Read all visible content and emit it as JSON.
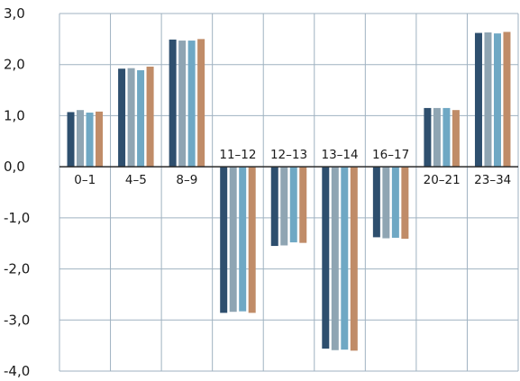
{
  "chart_data": {
    "type": "bar",
    "categories": [
      "0–1",
      "4–5",
      "8–9",
      "11–12",
      "12–13",
      "13–14",
      "16–17",
      "20–21",
      "23–34"
    ],
    "series": [
      {
        "color": "#2e4f6e",
        "values": [
          1.07,
          1.92,
          2.49,
          -2.86,
          -1.55,
          -3.56,
          -1.38,
          1.15,
          2.62
        ]
      },
      {
        "color": "#8fa5b3",
        "values": [
          1.11,
          1.93,
          2.47,
          -2.84,
          -1.54,
          -3.59,
          -1.4,
          1.15,
          2.63
        ]
      },
      {
        "color": "#6fa8c4",
        "values": [
          1.06,
          1.89,
          2.47,
          -2.83,
          -1.48,
          -3.58,
          -1.39,
          1.15,
          2.61
        ]
      },
      {
        "color": "#c08c68",
        "values": [
          1.08,
          1.96,
          2.5,
          -2.86,
          -1.49,
          -3.6,
          -1.41,
          1.11,
          2.64
        ]
      }
    ],
    "yticks": [
      "3,0",
      "2,0",
      "1,0",
      "0,0",
      "-1,0",
      "-2,0",
      "-3,0",
      "-4,0"
    ],
    "ylim": [
      -4,
      3
    ],
    "grid": true,
    "title": "",
    "xlabel": "",
    "ylabel": ""
  }
}
